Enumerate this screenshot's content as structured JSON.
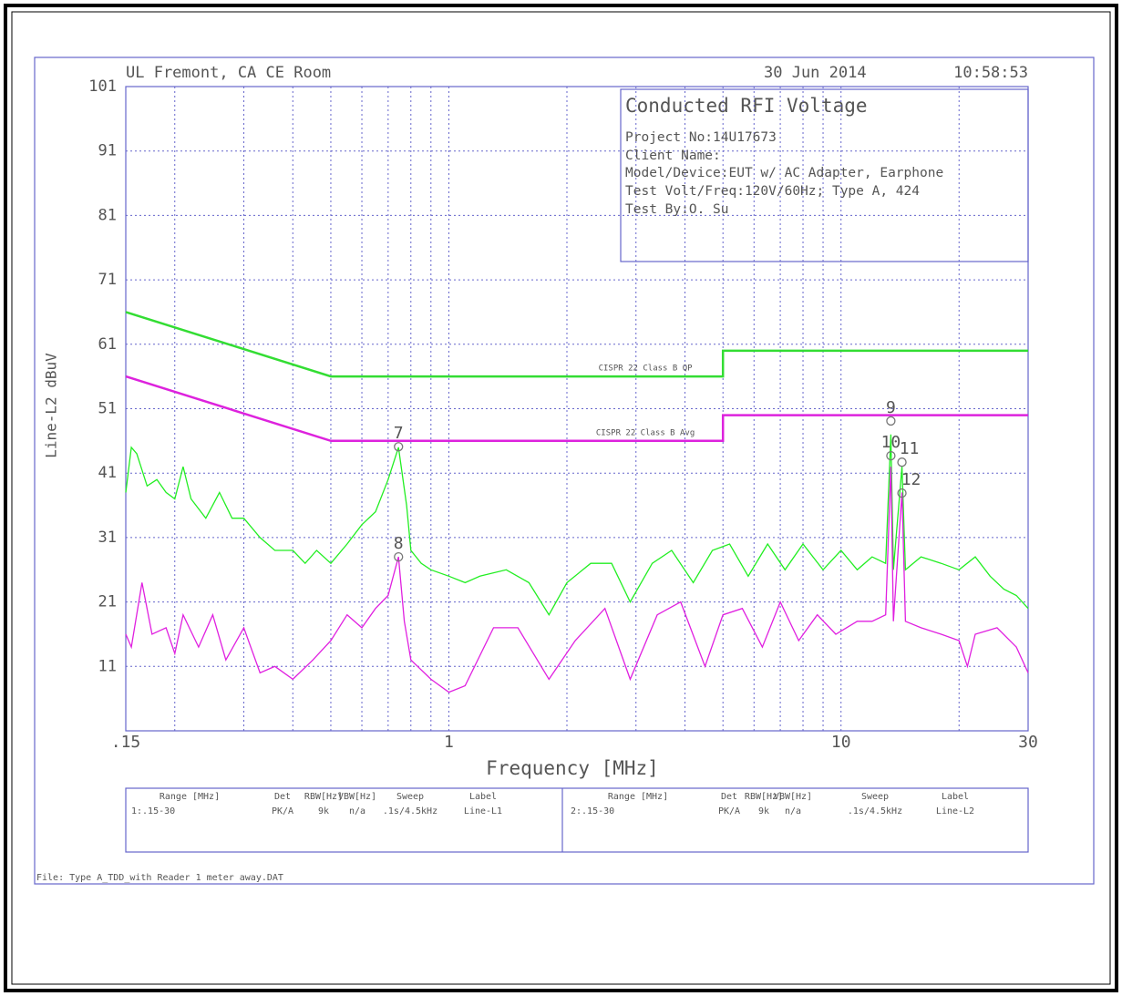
{
  "header": {
    "site": "UL Fremont, CA CE Room",
    "date": "30 Jun 2014",
    "time": "10:58:53"
  },
  "info": {
    "title": "Conducted RFI Voltage",
    "lines": [
      "Project No:14U17673",
      "Client Name:",
      "Model/Device:EUT w/ AC Adapter, Earphone",
      "Test Volt/Freq:120V/60Hz; Type A, 424",
      "Test By:O. Su"
    ]
  },
  "chart_data": {
    "type": "line",
    "xlabel": "Frequency [MHz]",
    "ylabel": "Line-L2 dBuV",
    "xscale": "log",
    "grid": true,
    "xlim": [
      0.15,
      30
    ],
    "xticks": [
      {
        "value": 0.15,
        "label": ".15"
      },
      1,
      10,
      30
    ],
    "xminor_ticks": [
      0.2,
      0.3,
      0.4,
      0.5,
      0.6,
      0.7,
      0.8,
      0.9,
      2,
      3,
      4,
      5,
      6,
      7,
      8,
      9,
      20
    ],
    "ylim": [
      1,
      101
    ],
    "yticks": [
      11,
      21,
      31,
      41,
      51,
      61,
      71,
      81,
      91,
      101
    ],
    "series": [
      {
        "name": "Line-L2",
        "color": "#22ee22",
        "x": [
          0.15,
          0.155,
          0.16,
          0.17,
          0.18,
          0.19,
          0.2,
          0.21,
          0.22,
          0.24,
          0.26,
          0.28,
          0.3,
          0.33,
          0.36,
          0.4,
          0.43,
          0.46,
          0.5,
          0.55,
          0.6,
          0.65,
          0.7,
          0.744,
          0.78,
          0.8,
          0.85,
          0.9,
          1.0,
          1.1,
          1.2,
          1.4,
          1.6,
          1.8,
          2.0,
          2.3,
          2.6,
          2.9,
          3.3,
          3.7,
          4.2,
          4.7,
          5.2,
          5.8,
          6.5,
          7.2,
          8,
          9,
          10,
          11,
          12,
          13,
          13.4,
          13.6,
          14.3,
          14.6,
          16,
          18,
          20,
          22,
          24,
          26,
          28,
          30
        ],
        "values": [
          38,
          45,
          44,
          39,
          40,
          38,
          37,
          42,
          37,
          34,
          38,
          34,
          34,
          31,
          29,
          29,
          27,
          29,
          27,
          30,
          33,
          35,
          40,
          45,
          36,
          29,
          27,
          26,
          25,
          24,
          25,
          26,
          24,
          19,
          24,
          27,
          27,
          21,
          27,
          29,
          24,
          29,
          30,
          25,
          30,
          26,
          30,
          26,
          29,
          26,
          28,
          27,
          47,
          26,
          42,
          26,
          28,
          27,
          26,
          28,
          25,
          23,
          22,
          20
        ]
      },
      {
        "name": "Line-L1",
        "color": "#e020e0",
        "x": [
          0.15,
          0.155,
          0.165,
          0.175,
          0.19,
          0.2,
          0.21,
          0.23,
          0.25,
          0.27,
          0.3,
          0.33,
          0.36,
          0.4,
          0.45,
          0.5,
          0.55,
          0.6,
          0.65,
          0.7,
          0.744,
          0.77,
          0.8,
          0.9,
          1.0,
          1.1,
          1.3,
          1.5,
          1.8,
          2.1,
          2.5,
          2.9,
          3.4,
          3.9,
          4.5,
          5.0,
          5.6,
          6.3,
          7,
          7.8,
          8.7,
          9.7,
          11,
          12,
          13,
          13.4,
          13.6,
          14.3,
          14.6,
          16,
          18,
          20,
          21,
          22,
          25,
          28,
          30
        ],
        "values": [
          16,
          14,
          24,
          16,
          17,
          13,
          19,
          14,
          19,
          12,
          17,
          10,
          11,
          9,
          12,
          15,
          19,
          17,
          20,
          22,
          28,
          18,
          12,
          9,
          7,
          8,
          17,
          17,
          9,
          15,
          20,
          9,
          19,
          21,
          11,
          19,
          20,
          14,
          21,
          15,
          19,
          16,
          18,
          18,
          19,
          42,
          18,
          38,
          18,
          17,
          16,
          15,
          11,
          16,
          17,
          14,
          10
        ]
      },
      {
        "name": "CISPR 22 Class B QP",
        "color": "#33dd33",
        "limit": true,
        "x": [
          0.15,
          0.5,
          5,
          5,
          30
        ],
        "values": [
          66,
          56,
          56,
          60,
          60
        ]
      },
      {
        "name": "CISPR 22 Class B Avg",
        "color": "#dd22dd",
        "limit": true,
        "x": [
          0.15,
          0.5,
          5,
          5,
          30
        ],
        "values": [
          56,
          46,
          46,
          50,
          50
        ]
      }
    ],
    "markers": {
      "x": [
        0.744,
        0.744,
        13.4,
        13.4,
        14.3,
        14.3
      ],
      "values": [
        45.1,
        28.0,
        49.1,
        43.7,
        42.7,
        37.9
      ],
      "labels": [
        "7",
        "8",
        "9",
        "10",
        "11",
        "12"
      ]
    }
  },
  "table": {
    "headers": [
      "Range [MHz]",
      "Det",
      "RBW[Hz]",
      "VBW[Hz]",
      "Sweep",
      "Label"
    ],
    "rows": [
      [
        "1:.15-30",
        "PK/A",
        "9k",
        "n/a",
        ".1s/4.5kHz",
        "Line-L1"
      ],
      [
        "2:.15-30",
        "PK/A",
        "9k",
        "n/a",
        ".1s/4.5kHz",
        "Line-L2"
      ]
    ]
  },
  "footer": "File: Type A_TDD_with Reader 1 meter away.DAT"
}
